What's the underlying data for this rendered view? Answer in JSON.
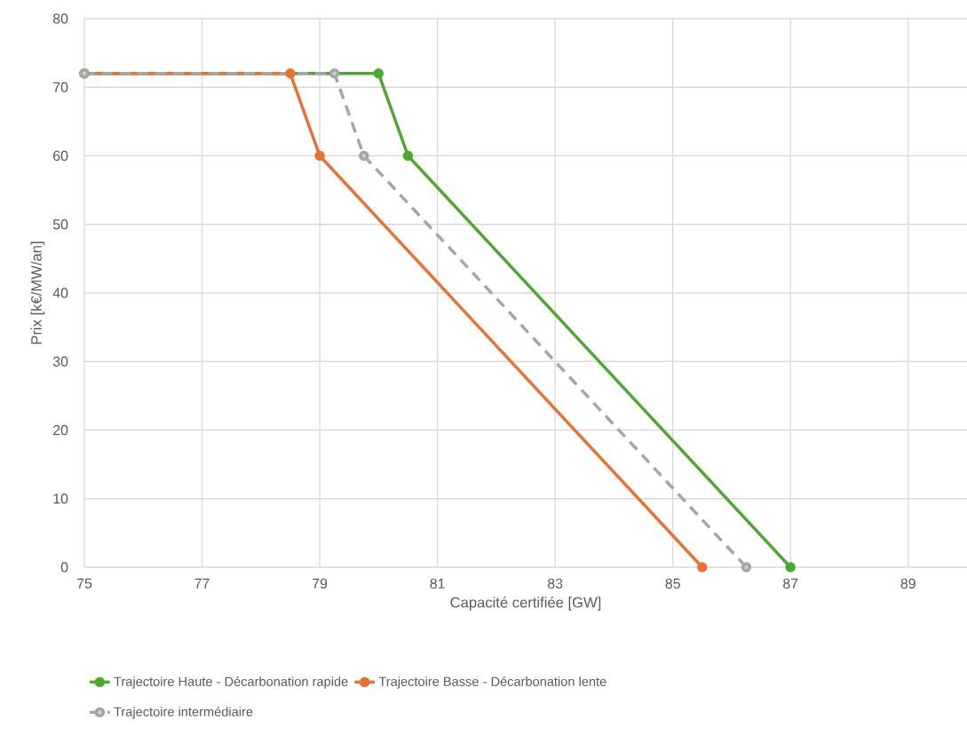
{
  "chart_data": {
    "type": "line",
    "xlabel": "Capacité certifiée [GW]",
    "ylabel": "Prix [k€/MW/an]",
    "xlim": [
      75,
      90
    ],
    "xticks": [
      75,
      77,
      79,
      81,
      83,
      85,
      87,
      89
    ],
    "ylim": [
      0,
      80
    ],
    "yticks": [
      0,
      10,
      20,
      30,
      40,
      50,
      60,
      70,
      80
    ],
    "grid": true,
    "legend": "bottom",
    "marker": "circle",
    "series": [
      {
        "name": "Trajectoire Haute - Décarbonation rapide",
        "color": "#4ea72e",
        "line_style": "solid",
        "x": [
          75,
          80,
          80.5,
          87
        ],
        "values": [
          72,
          72,
          60,
          0
        ]
      },
      {
        "name": "Trajectoire Basse - Décarbonation lente",
        "color": "#e97132",
        "line_style": "solid",
        "x": [
          75,
          78.5,
          79,
          85.5
        ],
        "values": [
          72,
          72,
          60,
          0
        ]
      },
      {
        "name": "Trajectoire intermédiaire",
        "color": "#a5a5a5",
        "line_style": "dashed",
        "x": [
          75,
          79.25,
          79.75,
          86.25
        ],
        "values": [
          72,
          72,
          60,
          0
        ]
      }
    ]
  }
}
